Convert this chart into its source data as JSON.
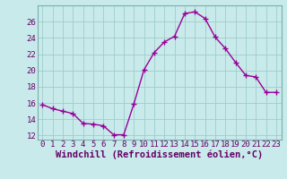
{
  "x": [
    0,
    1,
    2,
    3,
    4,
    5,
    6,
    7,
    8,
    9,
    10,
    11,
    12,
    13,
    14,
    15,
    16,
    17,
    18,
    19,
    20,
    21,
    22,
    23
  ],
  "y": [
    15.8,
    15.3,
    15.0,
    14.7,
    13.5,
    13.4,
    13.2,
    12.1,
    12.1,
    15.9,
    20.1,
    22.2,
    23.5,
    24.2,
    27.0,
    27.2,
    26.4,
    24.1,
    22.7,
    21.0,
    19.4,
    19.2,
    17.3,
    17.3
  ],
  "line_color": "#990099",
  "bg_color": "#c8eaea",
  "grid_color": "#a0cccc",
  "xlabel": "Windchill (Refroidissement éolien,°C)",
  "xlim": [
    -0.5,
    23.5
  ],
  "ylim": [
    11.5,
    28.0
  ],
  "yticks": [
    12,
    14,
    16,
    18,
    20,
    22,
    24,
    26
  ],
  "xticks": [
    0,
    1,
    2,
    3,
    4,
    5,
    6,
    7,
    8,
    9,
    10,
    11,
    12,
    13,
    14,
    15,
    16,
    17,
    18,
    19,
    20,
    21,
    22,
    23
  ],
  "marker": "+",
  "marker_size": 4,
  "marker_ew": 1.0,
  "line_width": 1.0,
  "xlabel_fontsize": 7.5,
  "tick_fontsize": 6.5
}
